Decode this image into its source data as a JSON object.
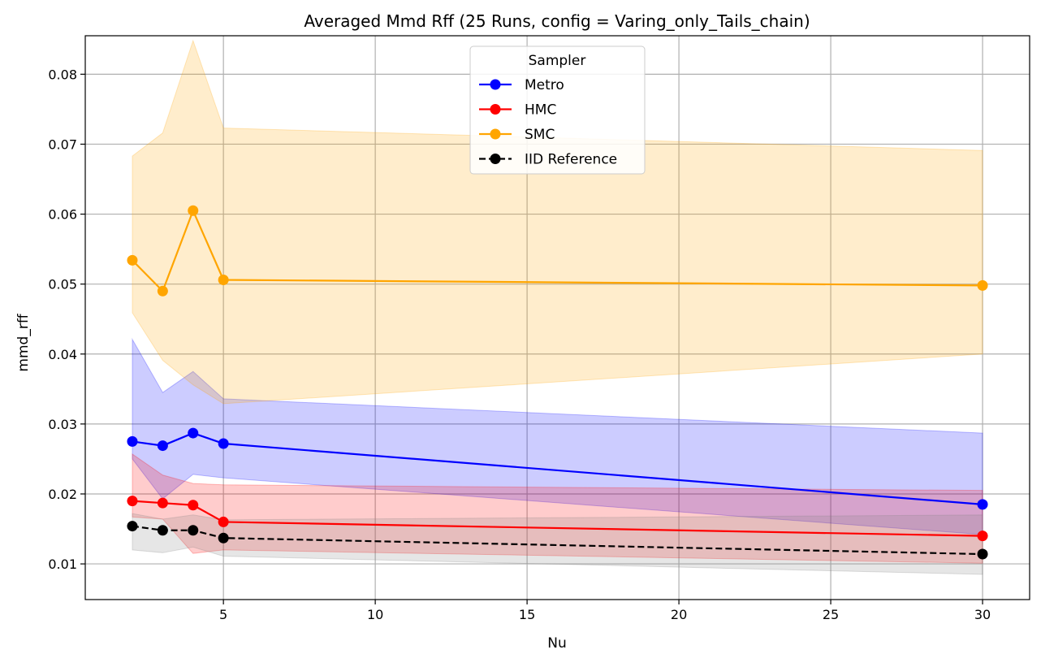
{
  "chart_data": {
    "type": "line",
    "title": "Averaged Mmd Rff (25 Runs, config = Varing_only_Tails_chain)",
    "xlabel": "Nu",
    "ylabel": "mmd_rff",
    "xlim": [
      0.45,
      31.55
    ],
    "ylim": [
      0.0049,
      0.0855
    ],
    "xticks": [
      5,
      10,
      15,
      20,
      25,
      30
    ],
    "yticks": [
      0.01,
      0.02,
      0.03,
      0.04,
      0.05,
      0.06,
      0.07,
      0.08
    ],
    "ytick_labels": [
      "0.01",
      "0.02",
      "0.03",
      "0.04",
      "0.05",
      "0.06",
      "0.07",
      "0.08"
    ],
    "grid": true,
    "legend": {
      "title": "Sampler",
      "placement": "top-center"
    },
    "x": [
      2,
      3,
      4,
      5,
      30
    ],
    "series": [
      {
        "name": "Metro",
        "color": "#0000ff",
        "fill_color": "#0000ff",
        "linestyle": "solid",
        "marker": "circle",
        "values": [
          0.0275,
          0.0269,
          0.0287,
          0.0272,
          0.0185
        ],
        "band_upper": [
          0.0421,
          0.0345,
          0.0375,
          0.0336,
          0.0287
        ],
        "band_lower": [
          0.025,
          0.0193,
          0.0228,
          0.0223,
          0.0142
        ]
      },
      {
        "name": "HMC",
        "color": "#ff0000",
        "fill_color": "#ff0000",
        "linestyle": "solid",
        "marker": "circle",
        "values": [
          0.019,
          0.0187,
          0.0184,
          0.016,
          0.014
        ],
        "band_upper": [
          0.0257,
          0.0227,
          0.0215,
          0.0213,
          0.0205
        ],
        "band_lower": [
          0.0167,
          0.0164,
          0.0115,
          0.012,
          0.0101
        ]
      },
      {
        "name": "SMC",
        "color": "#ffa500",
        "fill_color": "#ffa500",
        "linestyle": "solid",
        "marker": "circle",
        "values": [
          0.0534,
          0.049,
          0.0605,
          0.0506,
          0.0498
        ],
        "band_upper": [
          0.0683,
          0.0716,
          0.0848,
          0.0723,
          0.0691
        ],
        "band_lower": [
          0.0459,
          0.0391,
          0.0356,
          0.0329,
          0.04
        ]
      },
      {
        "name": "IID Reference",
        "color": "#000000",
        "fill_color": "#808080",
        "linestyle": "dashed",
        "marker": "circle",
        "values": [
          0.0154,
          0.0148,
          0.0148,
          0.0137,
          0.0114
        ],
        "band_upper": [
          0.0172,
          0.0164,
          0.017,
          0.0163,
          0.017
        ],
        "band_lower": [
          0.012,
          0.0116,
          0.0124,
          0.0111,
          0.0085
        ]
      }
    ]
  }
}
